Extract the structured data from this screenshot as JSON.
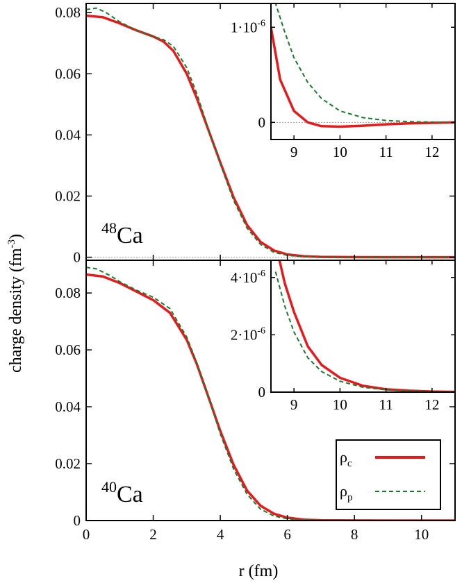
{
  "figure": {
    "ylabel": "charge density (fm",
    "ylabel_sup": "-3",
    "ylabel_close": ")",
    "xlabel": "r (fm)"
  },
  "colors": {
    "rho_c": "#e41a1c",
    "rho_p": "#1b7a2e",
    "zero_line": "#999999"
  },
  "chart_data": [
    {
      "id": "ca48-main",
      "type": "line",
      "annotation": {
        "mass": "48",
        "element": "Ca"
      },
      "xlim": [
        0,
        11
      ],
      "ylim": [
        -0.001,
        0.083
      ],
      "xticks": [
        0,
        2,
        4,
        6,
        8,
        10
      ],
      "yticks": [
        0,
        0.02,
        0.04,
        0.06,
        0.08
      ],
      "ytick_labels": [
        "0",
        "0.02",
        "0.04",
        "0.06",
        "0.08"
      ],
      "show_xtick_labels": false,
      "zero_line": true,
      "series": [
        {
          "key": "rho_c",
          "style": "solid",
          "x": [
            0,
            0.5,
            1,
            1.5,
            2,
            2.3,
            2.6,
            3,
            3.3,
            3.6,
            4,
            4.4,
            4.8,
            5.2,
            5.6,
            6,
            6.5,
            7,
            8,
            9,
            10,
            11
          ],
          "y": [
            0.079,
            0.0785,
            0.0765,
            0.0742,
            0.0722,
            0.0706,
            0.0675,
            0.06,
            0.052,
            0.043,
            0.031,
            0.0195,
            0.0105,
            0.005,
            0.0022,
            0.0009,
            0.0003,
            0.0001,
            2e-05,
            0,
            0,
            0
          ]
        },
        {
          "key": "rho_p",
          "style": "dashed",
          "x": [
            0,
            0.3,
            0.6,
            1,
            1.5,
            2,
            2.3,
            2.6,
            3,
            3.3,
            3.6,
            4,
            4.4,
            4.8,
            5.2,
            5.6,
            6,
            6.5,
            7,
            8,
            9,
            10,
            11
          ],
          "y": [
            0.081,
            0.0815,
            0.08,
            0.077,
            0.0742,
            0.0722,
            0.0712,
            0.069,
            0.062,
            0.0535,
            0.0435,
            0.0305,
            0.0185,
            0.0095,
            0.0042,
            0.0016,
            0.0006,
            0.0002,
            5e-05,
            1e-05,
            0,
            0,
            0
          ]
        }
      ]
    },
    {
      "id": "ca48-inset",
      "type": "line",
      "xlim": [
        8.5,
        12.5
      ],
      "ylim": [
        -1.8e-07,
        1.25e-06
      ],
      "xticks": [
        9,
        10,
        11,
        12
      ],
      "xtick_labels": [
        "9",
        "10",
        "11",
        "12"
      ],
      "yticks": [
        0,
        1e-06
      ],
      "ytick_labels": [
        "0",
        "1·10"
      ],
      "ytick_sups": [
        "",
        "-6"
      ],
      "zero_line": true,
      "series": [
        {
          "key": "rho_c",
          "style": "solid",
          "x": [
            8.5,
            8.7,
            9.0,
            9.3,
            9.6,
            10.0,
            10.5,
            11.0,
            11.5,
            12.0,
            12.5
          ],
          "y": [
            1e-06,
            4.5e-07,
            1.2e-07,
            0.0,
            -4e-08,
            -4.5e-08,
            -3.5e-08,
            -2e-08,
            -1e-08,
            -5e-09,
            0.0
          ]
        },
        {
          "key": "rho_p",
          "style": "dashed",
          "x": [
            8.5,
            8.6,
            8.8,
            9.0,
            9.3,
            9.6,
            10.0,
            10.5,
            11.0,
            11.5,
            12.0,
            12.5
          ],
          "y": [
            1.7e-06,
            1.25e-06,
            9.5e-07,
            6.8e-07,
            4.2e-07,
            2.5e-07,
            1.2e-07,
            5e-08,
            2e-08,
            8e-09,
            3e-09,
            1e-09
          ]
        }
      ]
    },
    {
      "id": "ca40-main",
      "type": "line",
      "annotation": {
        "mass": "40",
        "element": "Ca"
      },
      "xlim": [
        0,
        11
      ],
      "ylim": [
        0,
        0.0915
      ],
      "xticks": [
        0,
        2,
        4,
        6,
        8,
        10
      ],
      "xtick_labels": [
        "0",
        "2",
        "4",
        "6",
        "8",
        "10"
      ],
      "yticks": [
        0,
        0.02,
        0.04,
        0.06,
        0.08
      ],
      "ytick_labels": [
        "0",
        "0.02",
        "0.04",
        "0.06",
        "0.08"
      ],
      "show_xtick_labels": true,
      "series": [
        {
          "key": "rho_c",
          "style": "solid",
          "x": [
            0,
            0.5,
            1,
            1.5,
            2,
            2.5,
            3,
            3.3,
            3.6,
            4,
            4.4,
            4.8,
            5.2,
            5.6,
            6,
            6.5,
            7,
            8,
            9,
            10,
            11
          ],
          "y": [
            0.0865,
            0.0858,
            0.0835,
            0.0805,
            0.0775,
            0.073,
            0.0635,
            0.055,
            0.045,
            0.0315,
            0.0195,
            0.0105,
            0.0052,
            0.0024,
            0.001,
            0.0003,
            0.0001,
            2e-05,
            0,
            0,
            0
          ]
        },
        {
          "key": "rho_p",
          "style": "dashed",
          "x": [
            0,
            0.3,
            0.7,
            1,
            1.5,
            2,
            2.5,
            3,
            3.3,
            3.6,
            4,
            4.4,
            4.8,
            5.2,
            5.6,
            6,
            6.5,
            7,
            8,
            9,
            10,
            11
          ],
          "y": [
            0.089,
            0.0885,
            0.0862,
            0.084,
            0.081,
            0.0785,
            0.0745,
            0.0645,
            0.0555,
            0.045,
            0.0305,
            0.018,
            0.0092,
            0.004,
            0.0016,
            0.0006,
            0.0002,
            5e-05,
            1e-05,
            0,
            0,
            0
          ]
        }
      ]
    },
    {
      "id": "ca40-inset",
      "type": "line",
      "xlim": [
        8.5,
        12.5
      ],
      "ylim": [
        0,
        4.6e-06
      ],
      "xticks": [
        9,
        10,
        11,
        12
      ],
      "xtick_labels": [
        "9",
        "10",
        "11",
        "12"
      ],
      "yticks": [
        0,
        2e-06,
        4e-06
      ],
      "ytick_labels": [
        "0",
        "2·10",
        "4·10"
      ],
      "ytick_sups": [
        "",
        "-6",
        "-6"
      ],
      "series": [
        {
          "key": "rho_c",
          "style": "solid",
          "x": [
            8.6,
            8.8,
            9.0,
            9.3,
            9.6,
            10.0,
            10.5,
            11.0,
            11.5,
            12.0,
            12.5
          ],
          "y": [
            5.2e-06,
            3.8e-06,
            2.8e-06,
            1.6e-06,
            9.5e-07,
            5e-07,
            2.2e-07,
            1e-07,
            5e-08,
            2e-08,
            1e-08
          ]
        },
        {
          "key": "rho_p",
          "style": "dashed",
          "x": [
            8.6,
            8.8,
            9.0,
            9.3,
            9.6,
            10.0,
            10.5,
            11.0,
            11.5,
            12.0,
            12.5
          ],
          "y": [
            4.2e-06,
            3e-06,
            2.1e-06,
            1.2e-06,
            7.2e-07,
            3.8e-07,
            1.7e-07,
            8e-08,
            4e-08,
            1.5e-08,
            8e-09
          ]
        }
      ]
    }
  ],
  "legend": {
    "placement": "bottom-right",
    "entries": [
      {
        "key": "rho_c",
        "symbol": "ρ",
        "sub": "c",
        "style": "solid"
      },
      {
        "key": "rho_p",
        "symbol": "ρ",
        "sub": "p",
        "style": "dashed"
      }
    ]
  }
}
